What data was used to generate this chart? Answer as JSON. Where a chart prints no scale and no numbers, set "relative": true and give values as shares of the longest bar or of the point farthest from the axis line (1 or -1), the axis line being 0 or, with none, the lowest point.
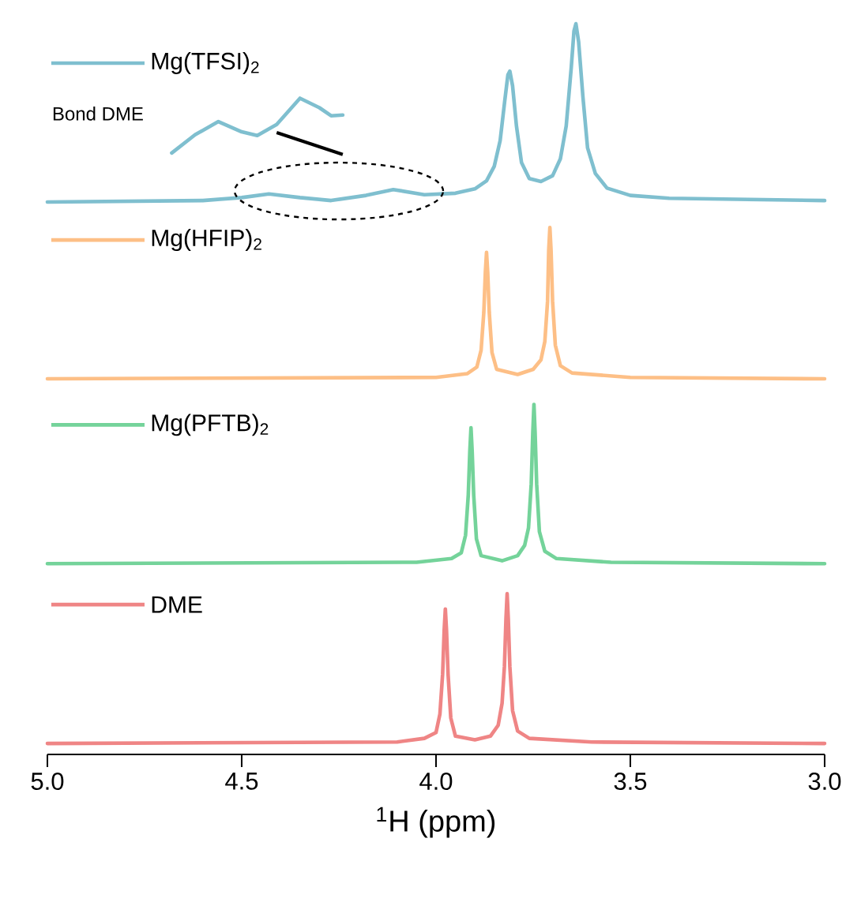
{
  "chart_data": {
    "type": "line",
    "relative": true,
    "xlabel": "$^{1}$H (ppm)",
    "xlim": [
      5.0,
      3.0
    ],
    "xticks": [
      {
        "value": 5.0,
        "label": "5.0"
      },
      {
        "value": 4.5,
        "label": "4.5"
      },
      {
        "value": 4.0,
        "label": "4.0"
      },
      {
        "value": 3.5,
        "label": "3.5"
      },
      {
        "value": 3.0,
        "label": "3.0"
      }
    ],
    "grid": false,
    "legend": "left",
    "annotations": [
      "Bond DME"
    ],
    "series": [
      {
        "name": "Mg(TFSI)$_{2}$",
        "color": "#7fbfcf",
        "x": [
          5.0,
          4.6,
          4.5,
          4.43,
          4.35,
          4.27,
          4.18,
          4.11,
          4.03,
          3.95,
          3.9,
          3.87,
          3.85,
          3.835,
          3.823,
          3.815,
          3.81,
          3.803,
          3.793,
          3.78,
          3.76,
          3.73,
          3.7,
          3.68,
          3.665,
          3.652,
          3.645,
          3.64,
          3.633,
          3.622,
          3.61,
          3.59,
          3.56,
          3.5,
          3.4,
          3.0
        ],
        "values": [
          0.756,
          0.758,
          0.762,
          0.767,
          0.762,
          0.758,
          0.765,
          0.773,
          0.766,
          0.768,
          0.774,
          0.785,
          0.805,
          0.84,
          0.895,
          0.93,
          0.935,
          0.915,
          0.86,
          0.81,
          0.788,
          0.784,
          0.792,
          0.815,
          0.86,
          0.94,
          0.99,
          1.0,
          0.975,
          0.9,
          0.83,
          0.795,
          0.775,
          0.765,
          0.761,
          0.758
        ]
      },
      {
        "color": "#7fbfcf",
        "x": [
          4.68,
          4.62,
          4.56,
          4.5,
          4.46,
          4.41,
          4.35,
          4.3,
          4.27,
          4.24
        ],
        "values": [
          0.823,
          0.848,
          0.866,
          0.852,
          0.847,
          0.862,
          0.898,
          0.885,
          0.874,
          0.875
        ]
      },
      {
        "name": "Mg(HFIP)$_{2}$",
        "color": "#fdbf86",
        "x": [
          5.0,
          4.0,
          3.92,
          3.895,
          3.884,
          3.877,
          3.873,
          3.87,
          3.867,
          3.863,
          3.856,
          3.844,
          3.79,
          3.75,
          3.73,
          3.72,
          3.713,
          3.71,
          3.707,
          3.704,
          3.7,
          3.693,
          3.68,
          3.65,
          3.5,
          3.0
        ],
        "values": [
          0.514,
          0.516,
          0.521,
          0.53,
          0.553,
          0.605,
          0.66,
          0.687,
          0.66,
          0.605,
          0.55,
          0.527,
          0.52,
          0.527,
          0.54,
          0.565,
          0.62,
          0.69,
          0.721,
          0.69,
          0.62,
          0.56,
          0.532,
          0.522,
          0.516,
          0.514
        ]
      },
      {
        "name": "Mg(PFTB)$_{2}$",
        "color": "#74d39a",
        "x": [
          5.0,
          4.05,
          3.96,
          3.935,
          3.924,
          3.917,
          3.913,
          3.91,
          3.907,
          3.903,
          3.896,
          3.884,
          3.83,
          3.79,
          3.772,
          3.762,
          3.755,
          3.751,
          3.748,
          3.745,
          3.741,
          3.734,
          3.72,
          3.69,
          3.55,
          3.0
        ],
        "values": [
          0.261,
          0.263,
          0.268,
          0.276,
          0.3,
          0.355,
          0.415,
          0.447,
          0.415,
          0.355,
          0.295,
          0.272,
          0.265,
          0.272,
          0.286,
          0.31,
          0.37,
          0.44,
          0.479,
          0.44,
          0.37,
          0.305,
          0.278,
          0.268,
          0.263,
          0.261
        ]
      },
      {
        "name": "DME",
        "color": "#ef8585",
        "x": [
          5.0,
          4.1,
          4.03,
          4.0,
          3.99,
          3.983,
          3.979,
          3.976,
          3.973,
          3.969,
          3.962,
          3.95,
          3.9,
          3.86,
          3.84,
          3.83,
          3.824,
          3.82,
          3.817,
          3.814,
          3.81,
          3.803,
          3.79,
          3.76,
          3.6,
          3.0
        ],
        "values": [
          0.015,
          0.017,
          0.022,
          0.03,
          0.055,
          0.11,
          0.17,
          0.199,
          0.17,
          0.11,
          0.05,
          0.025,
          0.02,
          0.025,
          0.04,
          0.07,
          0.12,
          0.185,
          0.22,
          0.185,
          0.12,
          0.06,
          0.032,
          0.022,
          0.017,
          0.015
        ]
      }
    ]
  }
}
